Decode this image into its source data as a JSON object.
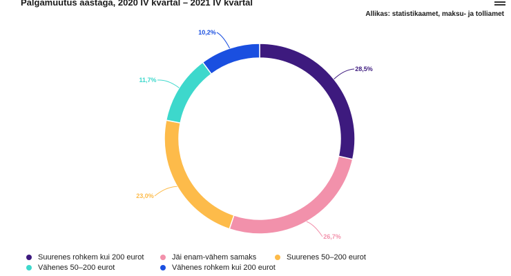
{
  "header": {
    "title": "Palgamuutus aastaga, 2020 IV kvartal – 2021 IV kvartal",
    "source": "Allikas: statistikaamet, maksu- ja tolliamet",
    "menu_icon": "hamburger-menu-icon"
  },
  "chart_data": {
    "type": "pie",
    "donut": true,
    "title": "Palgamuutus aastaga, 2020 IV kvartal – 2021 IV kvartal",
    "legend_position": "bottom",
    "slices": [
      {
        "name": "Suurenes rohkem kui 200 eurot",
        "value": 28.5,
        "label": "28,5%",
        "color": "#3d1a7e"
      },
      {
        "name": "Jäi enam-vähem samaks",
        "value": 26.7,
        "label": "26,7%",
        "color": "#f291ab"
      },
      {
        "name": "Suurenes 50–200 eurot",
        "value": 23.0,
        "label": "23,0%",
        "color": "#fdbb4a"
      },
      {
        "name": "Vähenes 50–200 eurot",
        "value": 11.7,
        "label": "11,7%",
        "color": "#3dd8cc"
      },
      {
        "name": "Vähenes rohkem kui 200 eurot",
        "value": 10.2,
        "label": "10,2%",
        "color": "#1a4fe0"
      }
    ]
  }
}
